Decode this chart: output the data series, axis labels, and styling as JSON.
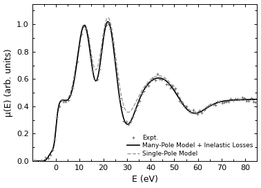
{
  "title": "",
  "xlabel": "E (eV)",
  "ylabel": "μ(E) (arb. units)",
  "xlim": [
    -10,
    85
  ],
  "ylim": [
    0,
    1.15
  ],
  "xticks": [
    0,
    10,
    20,
    30,
    40,
    50,
    60,
    70,
    80
  ],
  "yticks": [
    0.0,
    0.2,
    0.4,
    0.6,
    0.8,
    1.0
  ],
  "background_color": "#ffffff",
  "line_color_solid": "#000000",
  "line_color_dashed": "#999999",
  "marker_color": "#666666"
}
